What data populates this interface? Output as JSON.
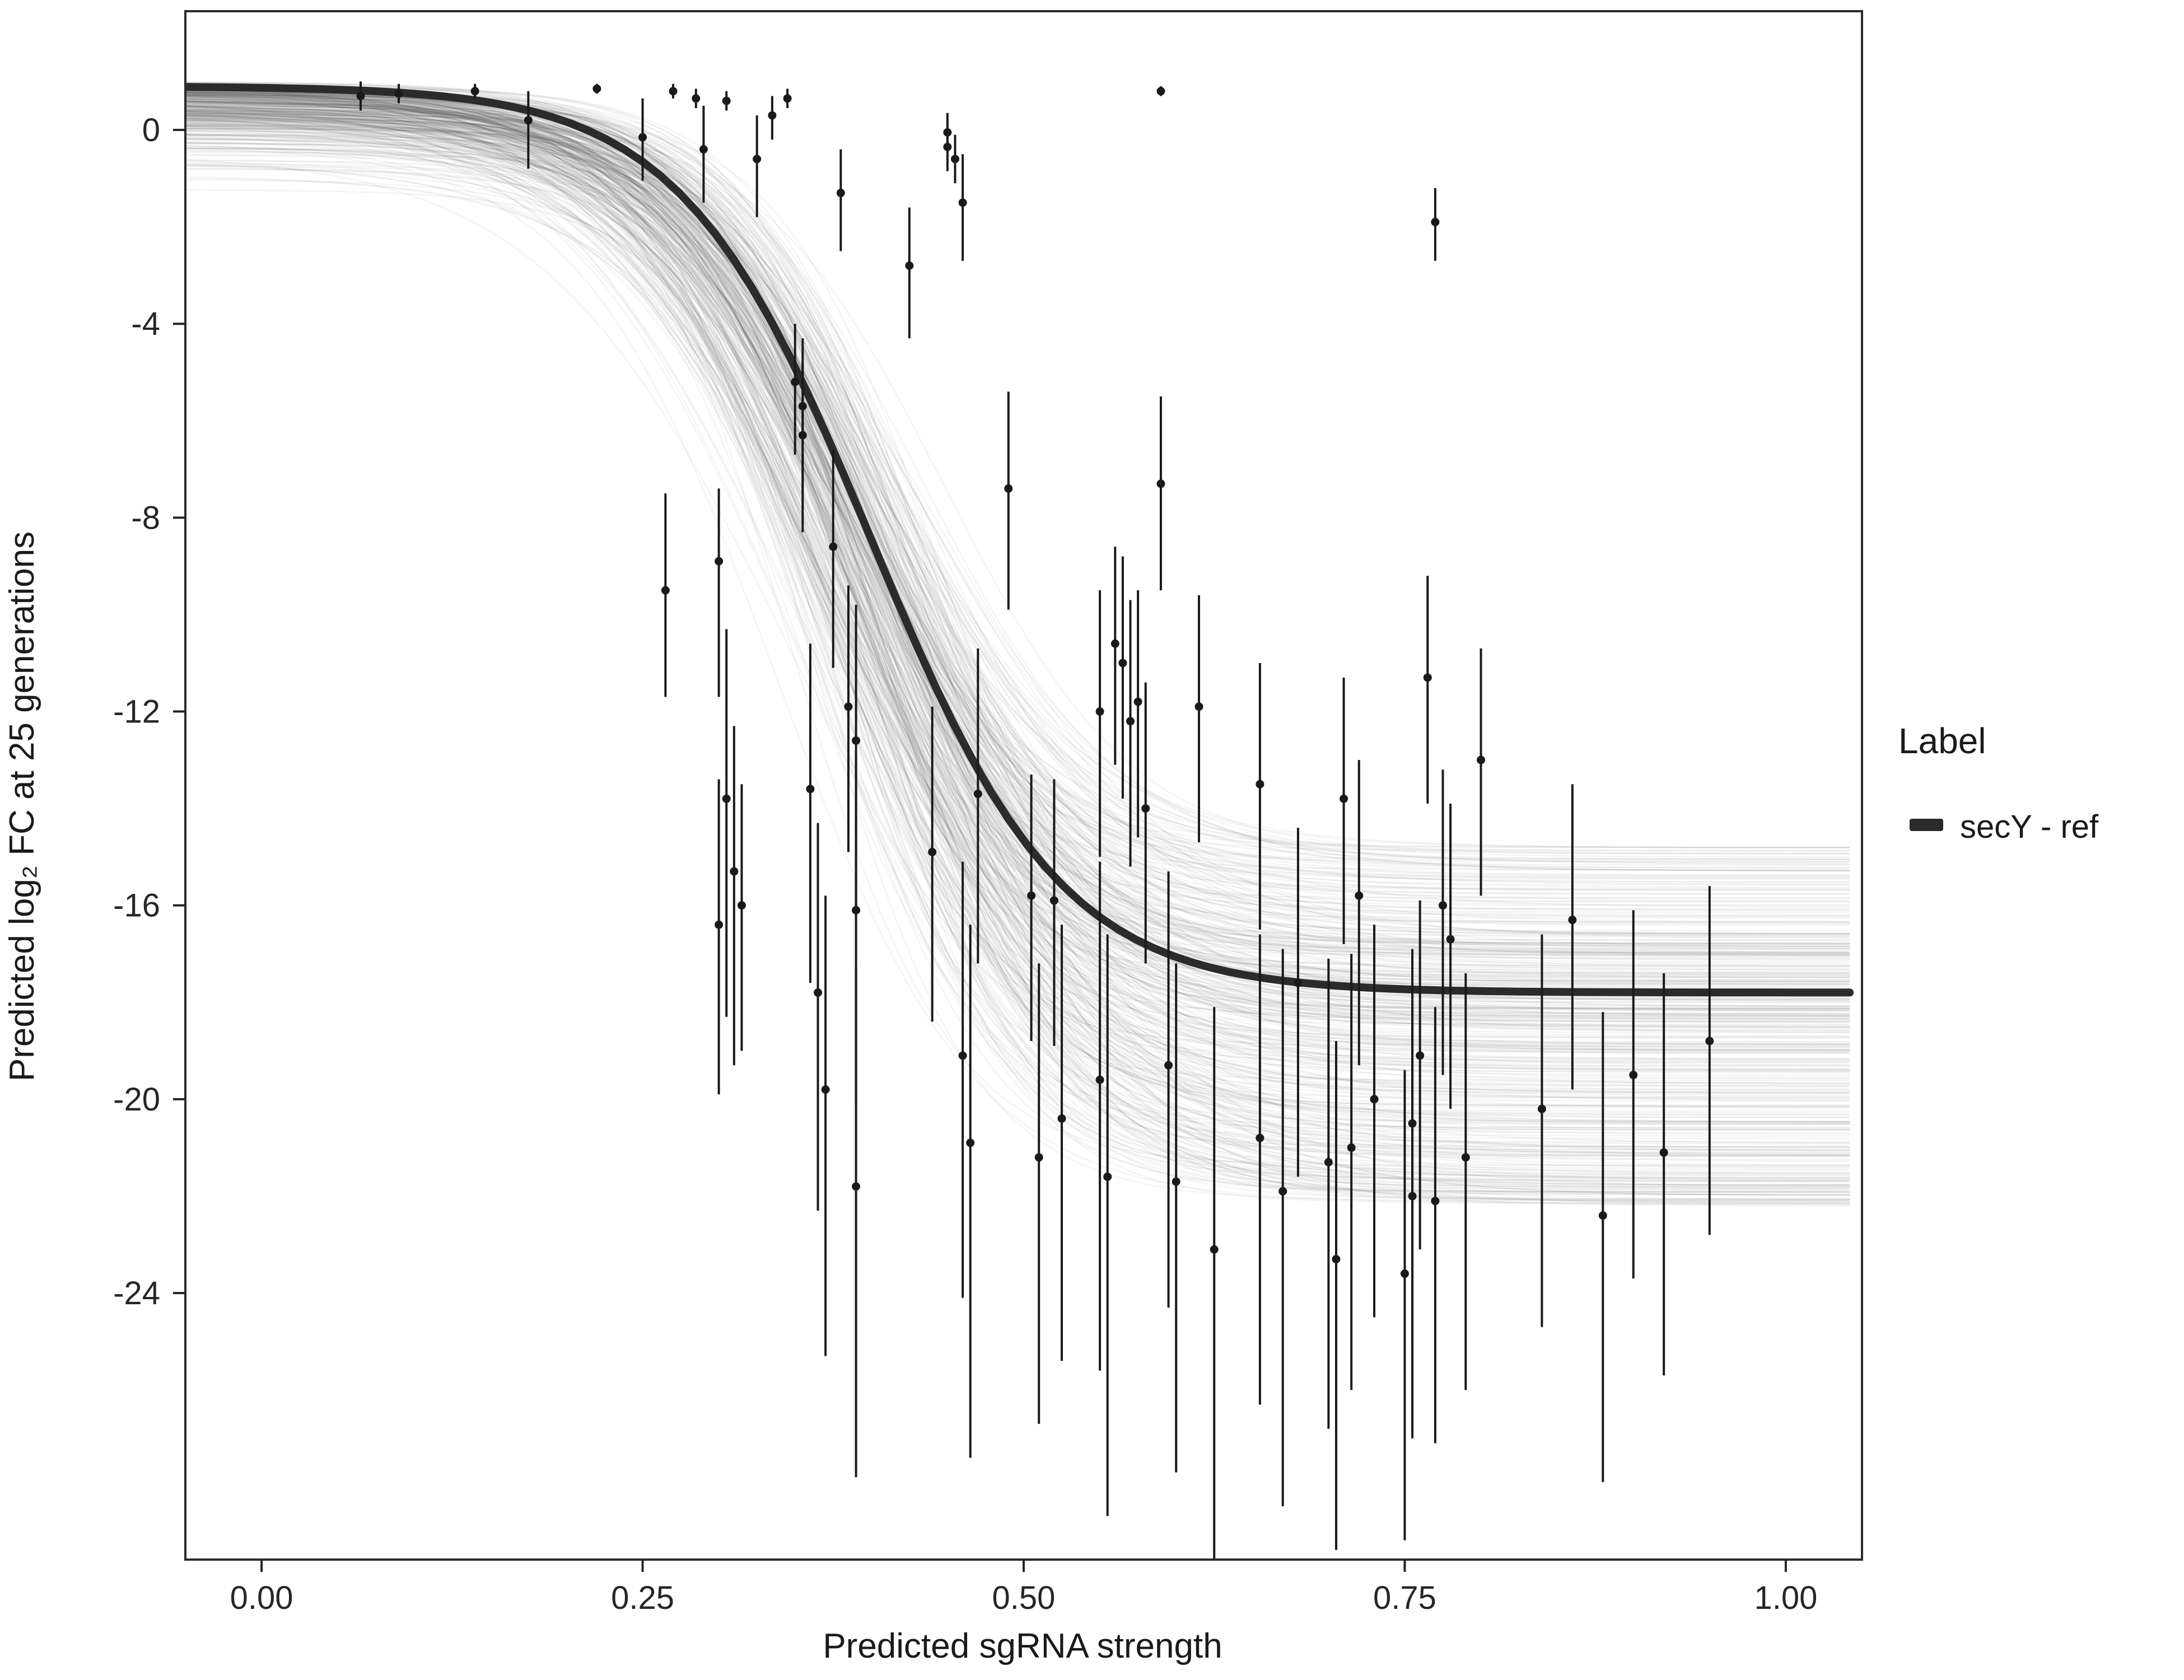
{
  "figure": {
    "legend": {
      "title": "Label",
      "items": [
        {
          "label": "secY - ref",
          "color": "#2b2b2b"
        }
      ]
    }
  },
  "chart_data": {
    "type": "scatter",
    "title": "",
    "xlabel": "Predicted sgRNA strength",
    "ylabel": "Predicted log₂ FC at 25 generations",
    "xlim": [
      -0.05,
      1.05
    ],
    "ylim": [
      -29.5,
      2.45
    ],
    "xticks": [
      0,
      0.25,
      0.5,
      0.75,
      1
    ],
    "xtick_labels": [
      "0.00",
      "0.25",
      "0.50",
      "0.75",
      "1.00"
    ],
    "yticks": [
      0,
      -4,
      -8,
      -12,
      -16,
      -20,
      -24
    ],
    "ytick_labels": [
      "0",
      "-4",
      "-8",
      "-12",
      "-16",
      "-20",
      "-24"
    ],
    "grid": false,
    "legend_position": "right",
    "fit_curve": {
      "label": "secY - ref",
      "model": "logistic4",
      "upper": 0.9,
      "lower": -17.8,
      "midpoint": 0.4,
      "slope": 16,
      "color": "#2b2b2b",
      "stroke_width": 14
    },
    "ensemble": {
      "count": 380,
      "seed": 20240613,
      "color": "#000000",
      "opacity": 0.045,
      "width": 2.5,
      "upper_range": [
        -1.4,
        1.0
      ],
      "upper_skew": 0.3,
      "lower_range": [
        -22.2,
        -14.8
      ],
      "midpoint_range": [
        0.335,
        0.45
      ],
      "slope_range": [
        12,
        20
      ]
    },
    "points": [
      [
        0.065,
        0.7,
        0.3,
        0.3
      ],
      [
        0.09,
        0.75,
        0.2,
        0.2
      ],
      [
        0.14,
        0.8,
        0.15,
        0.15
      ],
      [
        0.175,
        0.2,
        1.0,
        0.6
      ],
      [
        0.22,
        0.85,
        0.1,
        0.1
      ],
      [
        0.25,
        -0.15,
        0.9,
        0.8
      ],
      [
        0.27,
        0.8,
        0.15,
        0.15
      ],
      [
        0.285,
        0.65,
        0.2,
        0.2
      ],
      [
        0.29,
        -0.4,
        1.1,
        0.9
      ],
      [
        0.305,
        0.6,
        0.2,
        0.2
      ],
      [
        0.325,
        -0.6,
        1.2,
        0.9
      ],
      [
        0.335,
        0.3,
        0.5,
        0.4
      ],
      [
        0.345,
        0.65,
        0.2,
        0.2
      ],
      [
        0.38,
        -1.3,
        1.2,
        0.9
      ],
      [
        0.425,
        -2.8,
        1.5,
        1.2
      ],
      [
        0.45,
        -0.05,
        0.4,
        0.4
      ],
      [
        0.45,
        -0.35,
        0.5,
        0.4
      ],
      [
        0.455,
        -0.6,
        0.5,
        0.5
      ],
      [
        0.46,
        -1.5,
        1.2,
        1.0
      ],
      [
        0.59,
        0.8,
        0.1,
        0.1
      ],
      [
        0.77,
        -1.9,
        0.8,
        0.7
      ],
      [
        0.265,
        -9.5,
        2.2,
        2.0
      ],
      [
        0.3,
        -8.9,
        2.8,
        1.5
      ],
      [
        0.3,
        -16.4,
        3.5,
        3.0
      ],
      [
        0.305,
        -13.8,
        4.5,
        3.5
      ],
      [
        0.31,
        -15.3,
        4.0,
        3.0
      ],
      [
        0.315,
        -16.0,
        3.0,
        2.5
      ],
      [
        0.35,
        -5.2,
        1.5,
        1.2
      ],
      [
        0.355,
        -5.7,
        1.8,
        1.4
      ],
      [
        0.355,
        -6.3,
        2.0,
        1.5
      ],
      [
        0.36,
        -13.6,
        4.0,
        3.0
      ],
      [
        0.365,
        -17.8,
        4.5,
        3.5
      ],
      [
        0.37,
        -19.8,
        5.5,
        4.0
      ],
      [
        0.375,
        -8.6,
        2.5,
        2.0
      ],
      [
        0.385,
        -11.9,
        3.0,
        2.5
      ],
      [
        0.39,
        -12.6,
        3.5,
        2.8
      ],
      [
        0.39,
        -16.1,
        4.0,
        3.2
      ],
      [
        0.39,
        -21.8,
        6.0,
        4.5
      ],
      [
        0.44,
        -14.9,
        3.5,
        3.0
      ],
      [
        0.46,
        -19.1,
        5.0,
        4.0
      ],
      [
        0.465,
        -20.9,
        6.5,
        4.5
      ],
      [
        0.47,
        -13.7,
        3.5,
        3.0
      ],
      [
        0.49,
        -7.4,
        2.5,
        2.0
      ],
      [
        0.505,
        -15.8,
        3.0,
        2.5
      ],
      [
        0.51,
        -21.2,
        5.5,
        4.0
      ],
      [
        0.52,
        -15.9,
        3.0,
        2.5
      ],
      [
        0.525,
        -20.4,
        5.0,
        4.0
      ],
      [
        0.55,
        -12.0,
        3.0,
        2.5
      ],
      [
        0.55,
        -19.6,
        6.0,
        4.5
      ],
      [
        0.555,
        -21.6,
        7.0,
        5.0
      ],
      [
        0.56,
        -10.6,
        2.5,
        2.0
      ],
      [
        0.565,
        -11.0,
        2.8,
        2.2
      ],
      [
        0.57,
        -12.2,
        3.0,
        2.5
      ],
      [
        0.575,
        -11.8,
        2.8,
        2.3
      ],
      [
        0.58,
        -14.0,
        3.2,
        2.6
      ],
      [
        0.59,
        -7.3,
        2.2,
        1.8
      ],
      [
        0.595,
        -19.3,
        5.0,
        4.0
      ],
      [
        0.6,
        -21.7,
        6.0,
        4.5
      ],
      [
        0.615,
        -11.9,
        2.8,
        2.3
      ],
      [
        0.625,
        -23.1,
        6.5,
        5.0
      ],
      [
        0.655,
        -13.5,
        3.0,
        2.5
      ],
      [
        0.655,
        -20.8,
        5.5,
        4.2
      ],
      [
        0.67,
        -21.9,
        6.5,
        5.0
      ],
      [
        0.68,
        -17.6,
        4.0,
        3.2
      ],
      [
        0.7,
        -21.3,
        5.5,
        4.2
      ],
      [
        0.705,
        -23.3,
        6.0,
        4.5
      ],
      [
        0.71,
        -13.8,
        3.0,
        2.5
      ],
      [
        0.715,
        -21.0,
        5.0,
        4.0
      ],
      [
        0.72,
        -15.8,
        3.5,
        2.8
      ],
      [
        0.73,
        -20.0,
        4.5,
        3.6
      ],
      [
        0.75,
        -23.6,
        5.5,
        4.2
      ],
      [
        0.755,
        -20.5,
        4.5,
        3.6
      ],
      [
        0.755,
        -22.0,
        5.0,
        4.0
      ],
      [
        0.76,
        -19.1,
        4.0,
        3.2
      ],
      [
        0.765,
        -11.3,
        2.6,
        2.1
      ],
      [
        0.77,
        -22.1,
        5.0,
        4.0
      ],
      [
        0.775,
        -16.0,
        3.5,
        2.8
      ],
      [
        0.78,
        -16.7,
        3.5,
        2.8
      ],
      [
        0.79,
        -21.2,
        4.8,
        3.8
      ],
      [
        0.8,
        -13.0,
        2.8,
        2.3
      ],
      [
        0.84,
        -20.2,
        4.5,
        3.6
      ],
      [
        0.86,
        -16.3,
        3.5,
        2.8
      ],
      [
        0.88,
        -22.4,
        5.5,
        4.2
      ],
      [
        0.9,
        -19.5,
        4.2,
        3.4
      ],
      [
        0.92,
        -21.1,
        4.6,
        3.7
      ],
      [
        0.95,
        -18.8,
        4.0,
        3.2
      ]
    ]
  }
}
